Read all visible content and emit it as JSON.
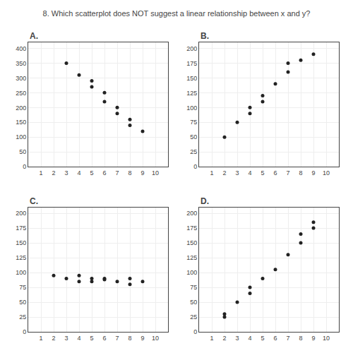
{
  "title": "8. Which scatterplot does NOT suggest a linear relationship between x and y?",
  "chart_data": [
    {
      "type": "scatter",
      "title": "A.",
      "color": "#222222",
      "grid": true,
      "x": [
        3,
        4,
        5,
        5,
        6,
        6,
        7,
        7,
        8,
        8,
        9
      ],
      "values": [
        350,
        310,
        290,
        270,
        250,
        220,
        200,
        180,
        160,
        140,
        120
      ],
      "xlim": [
        0,
        11
      ],
      "ylim": [
        0,
        420
      ],
      "xticks": [
        1,
        2,
        3,
        4,
        5,
        6,
        7,
        8,
        9,
        10
      ],
      "yticks": [
        400,
        350,
        300,
        250,
        200,
        150,
        100,
        50,
        0
      ]
    },
    {
      "type": "scatter",
      "title": "B.",
      "color": "#222222",
      "grid": true,
      "x": [
        2,
        3,
        4,
        4,
        5,
        5,
        6,
        7,
        7,
        8,
        9
      ],
      "values": [
        50,
        75,
        100,
        90,
        120,
        110,
        140,
        160,
        175,
        180,
        190
      ],
      "xlim": [
        0,
        11
      ],
      "ylim": [
        0,
        210
      ],
      "xticks": [
        1,
        2,
        3,
        4,
        5,
        6,
        7,
        8,
        9,
        10
      ],
      "yticks": [
        200,
        175,
        150,
        125,
        100,
        75,
        50,
        25,
        0
      ]
    },
    {
      "type": "scatter",
      "title": "C.",
      "color": "#222222",
      "grid": true,
      "x": [
        2,
        3,
        4,
        4,
        5,
        5,
        6,
        6,
        7,
        8,
        8,
        9
      ],
      "values": [
        95,
        90,
        85,
        95,
        90,
        85,
        90,
        88,
        85,
        80,
        90,
        85
      ],
      "xlim": [
        0,
        11
      ],
      "ylim": [
        0,
        210
      ],
      "xticks": [
        1,
        2,
        3,
        4,
        5,
        6,
        7,
        8,
        9,
        10
      ],
      "yticks": [
        200,
        175,
        150,
        125,
        100,
        75,
        50,
        25,
        0
      ]
    },
    {
      "type": "scatter",
      "title": "D.",
      "color": "#222222",
      "grid": true,
      "x": [
        2,
        2,
        3,
        4,
        4,
        5,
        6,
        7,
        8,
        8,
        9,
        9
      ],
      "values": [
        25,
        30,
        50,
        65,
        75,
        90,
        105,
        130,
        150,
        165,
        175,
        185
      ],
      "xlim": [
        0,
        11
      ],
      "ylim": [
        0,
        210
      ],
      "xticks": [
        1,
        2,
        3,
        4,
        5,
        6,
        7,
        8,
        9,
        10
      ],
      "yticks": [
        200,
        175,
        150,
        125,
        100,
        75,
        50,
        25,
        0
      ]
    }
  ]
}
